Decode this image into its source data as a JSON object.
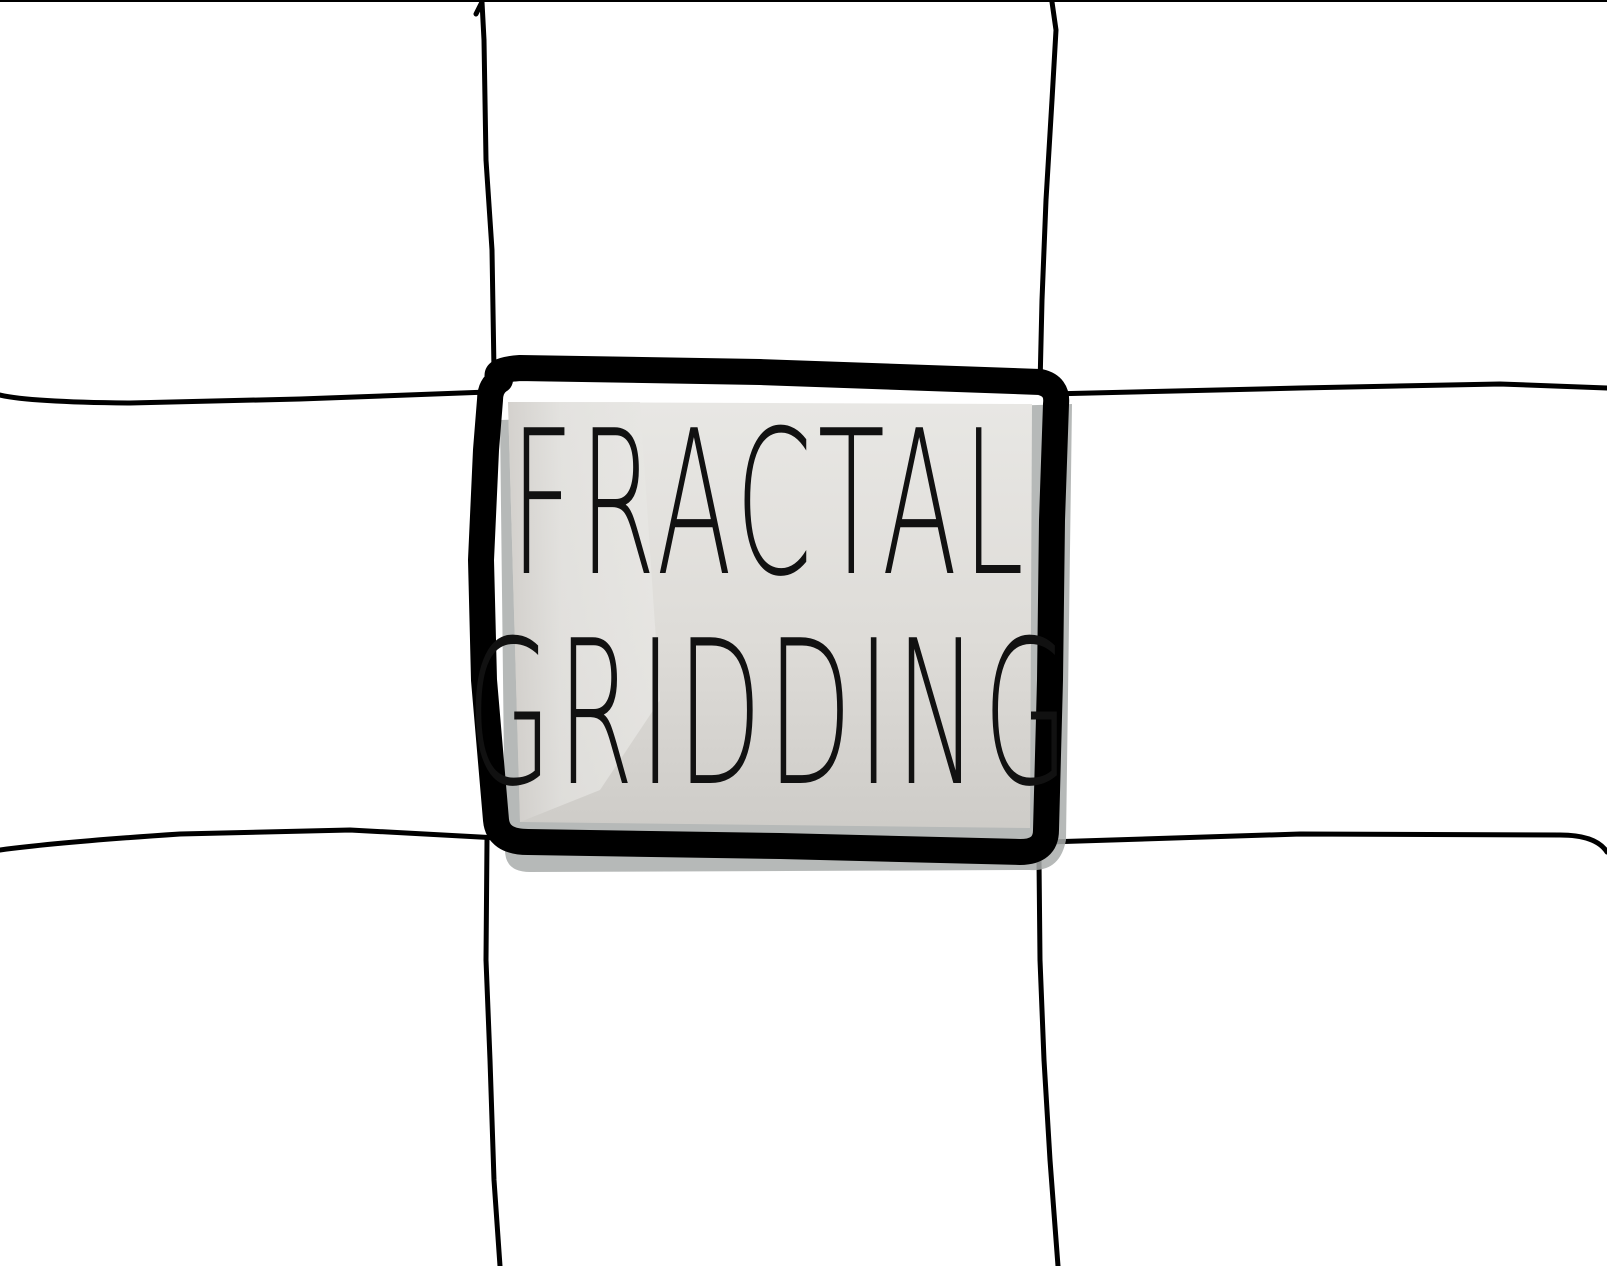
{
  "title": {
    "line1": "FRACTAL",
    "line2": "GRIDDING"
  },
  "colors": {
    "ink": "#000000",
    "box_fill_light": "#e6e6e3",
    "box_fill_dark": "#cfccc8",
    "box_shadow": "#a9adac",
    "background": "#ffffff"
  }
}
